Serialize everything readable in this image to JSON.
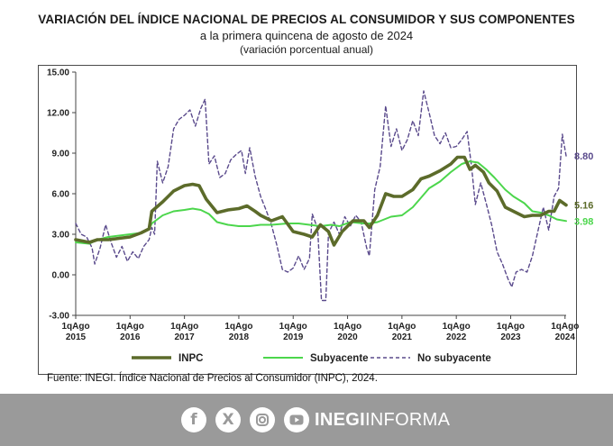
{
  "title": "VARIACIÓN DEL ÍNDICE NACIONAL DE PRECIOS AL CONSUMIDOR Y SUS COMPONENTES",
  "subtitle": "a la primera quincena de agosto de 2024",
  "subtitle2": "(variación porcentual anual)",
  "source": "Fuente: INEGI. Índice Nacional de Precios al Consumidor (INPC), 2024.",
  "footer": {
    "brand_bold": "INEGI",
    "brand_rest": "INFORMA",
    "icons": [
      "facebook-icon",
      "x-icon",
      "instagram-icon",
      "youtube-icon"
    ],
    "background": "#9a9a9a"
  },
  "colors": {
    "inpc": "#5c6b2a",
    "subyacente": "#4cd64c",
    "no_subyacente": "#5a4a8c"
  },
  "chart_data": {
    "type": "line",
    "title": "VARIACIÓN DEL ÍNDICE NACIONAL DE PRECIOS AL CONSUMIDOR Y SUS COMPONENTES",
    "ylim": [
      -3.0,
      15.0
    ],
    "yticks": [
      "-3.00",
      "0.00",
      "3.00",
      "6.00",
      "9.00",
      "12.00",
      "15.00"
    ],
    "xticks": [
      {
        "top": "1qAgo",
        "bottom": "2015"
      },
      {
        "top": "1qAgo",
        "bottom": "2016"
      },
      {
        "top": "1qAgo",
        "bottom": "2017"
      },
      {
        "top": "1qAgo",
        "bottom": "2018"
      },
      {
        "top": "1qAgo",
        "bottom": "2019"
      },
      {
        "top": "1qAgo",
        "bottom": "2020"
      },
      {
        "top": "1qAgo",
        "bottom": "2021"
      },
      {
        "top": "1qAgo",
        "bottom": "2022"
      },
      {
        "top": "1qAgo",
        "bottom": "2023"
      },
      {
        "top": "1qAgo",
        "bottom": "2024"
      }
    ],
    "x_range": [
      2015.6,
      2024.62
    ],
    "legend_position": "bottom",
    "series": [
      {
        "name": "INPC",
        "style": "solid-thick",
        "end_label": "5.16",
        "points": [
          [
            2015.6,
            2.6
          ],
          [
            2015.85,
            2.4
          ],
          [
            2016.0,
            2.6
          ],
          [
            2016.2,
            2.6
          ],
          [
            2016.4,
            2.7
          ],
          [
            2016.6,
            2.8
          ],
          [
            2016.8,
            3.1
          ],
          [
            2016.95,
            3.4
          ],
          [
            2017.0,
            4.7
          ],
          [
            2017.2,
            5.4
          ],
          [
            2017.4,
            6.2
          ],
          [
            2017.6,
            6.6
          ],
          [
            2017.75,
            6.7
          ],
          [
            2017.87,
            6.6
          ],
          [
            2018.0,
            5.6
          ],
          [
            2018.2,
            4.6
          ],
          [
            2018.4,
            4.8
          ],
          [
            2018.6,
            4.9
          ],
          [
            2018.75,
            5.1
          ],
          [
            2018.9,
            4.7
          ],
          [
            2019.0,
            4.4
          ],
          [
            2019.2,
            4.0
          ],
          [
            2019.4,
            4.3
          ],
          [
            2019.6,
            3.2
          ],
          [
            2019.8,
            3.0
          ],
          [
            2019.95,
            2.8
          ],
          [
            2020.1,
            3.7
          ],
          [
            2020.25,
            3.2
          ],
          [
            2020.35,
            2.2
          ],
          [
            2020.5,
            3.2
          ],
          [
            2020.7,
            4.0
          ],
          [
            2020.9,
            4.0
          ],
          [
            2021.0,
            3.5
          ],
          [
            2021.15,
            4.4
          ],
          [
            2021.3,
            6.0
          ],
          [
            2021.45,
            5.8
          ],
          [
            2021.6,
            5.8
          ],
          [
            2021.8,
            6.3
          ],
          [
            2021.95,
            7.1
          ],
          [
            2022.1,
            7.3
          ],
          [
            2022.3,
            7.7
          ],
          [
            2022.5,
            8.2
          ],
          [
            2022.62,
            8.7
          ],
          [
            2022.75,
            8.7
          ],
          [
            2022.85,
            7.8
          ],
          [
            2022.95,
            8.1
          ],
          [
            2023.1,
            7.6
          ],
          [
            2023.2,
            6.8
          ],
          [
            2023.35,
            6.2
          ],
          [
            2023.5,
            5.0
          ],
          [
            2023.65,
            4.7
          ],
          [
            2023.85,
            4.3
          ],
          [
            2024.0,
            4.4
          ],
          [
            2024.15,
            4.4
          ],
          [
            2024.3,
            4.7
          ],
          [
            2024.4,
            4.7
          ],
          [
            2024.5,
            5.5
          ],
          [
            2024.62,
            5.16
          ]
        ]
      },
      {
        "name": "Subyacente",
        "style": "solid",
        "end_label": "3.98",
        "points": [
          [
            2015.6,
            2.4
          ],
          [
            2015.85,
            2.3
          ],
          [
            2016.0,
            2.6
          ],
          [
            2016.2,
            2.8
          ],
          [
            2016.4,
            2.9
          ],
          [
            2016.6,
            3.0
          ],
          [
            2016.8,
            3.1
          ],
          [
            2016.95,
            3.4
          ],
          [
            2017.0,
            3.8
          ],
          [
            2017.2,
            4.4
          ],
          [
            2017.4,
            4.7
          ],
          [
            2017.6,
            4.8
          ],
          [
            2017.75,
            4.9
          ],
          [
            2017.9,
            4.8
          ],
          [
            2018.05,
            4.5
          ],
          [
            2018.2,
            3.9
          ],
          [
            2018.4,
            3.7
          ],
          [
            2018.6,
            3.6
          ],
          [
            2018.8,
            3.6
          ],
          [
            2019.0,
            3.7
          ],
          [
            2019.2,
            3.7
          ],
          [
            2019.5,
            3.8
          ],
          [
            2019.7,
            3.8
          ],
          [
            2019.9,
            3.7
          ],
          [
            2020.1,
            3.6
          ],
          [
            2020.3,
            3.7
          ],
          [
            2020.45,
            3.6
          ],
          [
            2020.65,
            3.9
          ],
          [
            2020.9,
            3.8
          ],
          [
            2021.0,
            3.8
          ],
          [
            2021.15,
            3.9
          ],
          [
            2021.4,
            4.3
          ],
          [
            2021.6,
            4.4
          ],
          [
            2021.8,
            5.0
          ],
          [
            2021.95,
            5.7
          ],
          [
            2022.1,
            6.4
          ],
          [
            2022.3,
            6.9
          ],
          [
            2022.5,
            7.6
          ],
          [
            2022.7,
            8.2
          ],
          [
            2022.85,
            8.4
          ],
          [
            2023.0,
            8.3
          ],
          [
            2023.15,
            7.8
          ],
          [
            2023.3,
            7.2
          ],
          [
            2023.5,
            6.3
          ],
          [
            2023.65,
            5.8
          ],
          [
            2023.85,
            5.3
          ],
          [
            2024.0,
            4.7
          ],
          [
            2024.15,
            4.6
          ],
          [
            2024.3,
            4.4
          ],
          [
            2024.45,
            4.1
          ],
          [
            2024.62,
            3.98
          ]
        ]
      },
      {
        "name": "No subyacente",
        "style": "dashed",
        "end_label": "8.80",
        "points": [
          [
            2015.6,
            3.8
          ],
          [
            2015.7,
            3.0
          ],
          [
            2015.8,
            2.8
          ],
          [
            2015.9,
            2.0
          ],
          [
            2015.95,
            0.8
          ],
          [
            2016.05,
            2.0
          ],
          [
            2016.15,
            3.7
          ],
          [
            2016.25,
            2.4
          ],
          [
            2016.35,
            1.3
          ],
          [
            2016.45,
            2.1
          ],
          [
            2016.55,
            1.0
          ],
          [
            2016.65,
            1.7
          ],
          [
            2016.75,
            1.2
          ],
          [
            2016.85,
            2.1
          ],
          [
            2016.95,
            2.6
          ],
          [
            2017.0,
            3.5
          ],
          [
            2017.05,
            3.0
          ],
          [
            2017.1,
            8.4
          ],
          [
            2017.2,
            6.8
          ],
          [
            2017.3,
            8.0
          ],
          [
            2017.4,
            10.8
          ],
          [
            2017.5,
            11.5
          ],
          [
            2017.6,
            11.8
          ],
          [
            2017.7,
            12.2
          ],
          [
            2017.8,
            11.0
          ],
          [
            2017.9,
            12.3
          ],
          [
            2017.98,
            13.0
          ],
          [
            2018.05,
            8.2
          ],
          [
            2018.15,
            8.8
          ],
          [
            2018.25,
            7.2
          ],
          [
            2018.35,
            7.5
          ],
          [
            2018.45,
            8.5
          ],
          [
            2018.55,
            8.9
          ],
          [
            2018.65,
            9.2
          ],
          [
            2018.72,
            7.5
          ],
          [
            2018.8,
            9.4
          ],
          [
            2018.9,
            7.3
          ],
          [
            2019.0,
            5.8
          ],
          [
            2019.1,
            4.8
          ],
          [
            2019.2,
            3.7
          ],
          [
            2019.3,
            2.2
          ],
          [
            2019.4,
            0.4
          ],
          [
            2019.5,
            0.2
          ],
          [
            2019.6,
            0.5
          ],
          [
            2019.7,
            1.4
          ],
          [
            2019.8,
            0.4
          ],
          [
            2019.9,
            1.2
          ],
          [
            2019.95,
            4.5
          ],
          [
            2020.05,
            3.4
          ],
          [
            2020.12,
            -1.9
          ],
          [
            2020.2,
            -1.9
          ],
          [
            2020.25,
            3.1
          ],
          [
            2020.35,
            3.9
          ],
          [
            2020.45,
            3.0
          ],
          [
            2020.55,
            4.3
          ],
          [
            2020.65,
            3.6
          ],
          [
            2020.75,
            4.4
          ],
          [
            2020.85,
            3.9
          ],
          [
            2020.95,
            2.0
          ],
          [
            2021.0,
            1.4
          ],
          [
            2021.1,
            6.3
          ],
          [
            2021.2,
            8.0
          ],
          [
            2021.3,
            12.5
          ],
          [
            2021.4,
            9.5
          ],
          [
            2021.5,
            10.8
          ],
          [
            2021.6,
            9.2
          ],
          [
            2021.7,
            10.0
          ],
          [
            2021.8,
            11.4
          ],
          [
            2021.9,
            10.3
          ],
          [
            2022.0,
            13.6
          ],
          [
            2022.1,
            12.0
          ],
          [
            2022.2,
            10.3
          ],
          [
            2022.3,
            9.7
          ],
          [
            2022.4,
            10.5
          ],
          [
            2022.5,
            9.4
          ],
          [
            2022.6,
            9.5
          ],
          [
            2022.7,
            10.0
          ],
          [
            2022.8,
            10.6
          ],
          [
            2022.88,
            8.0
          ],
          [
            2022.95,
            5.2
          ],
          [
            2023.05,
            6.8
          ],
          [
            2023.15,
            5.3
          ],
          [
            2023.25,
            3.7
          ],
          [
            2023.35,
            1.7
          ],
          [
            2023.45,
            0.8
          ],
          [
            2023.55,
            -0.3
          ],
          [
            2023.62,
            -0.9
          ],
          [
            2023.7,
            0.2
          ],
          [
            2023.8,
            0.4
          ],
          [
            2023.9,
            0.2
          ],
          [
            2024.0,
            1.4
          ],
          [
            2024.1,
            3.2
          ],
          [
            2024.2,
            5.0
          ],
          [
            2024.3,
            3.3
          ],
          [
            2024.4,
            5.8
          ],
          [
            2024.48,
            6.4
          ],
          [
            2024.55,
            10.4
          ],
          [
            2024.62,
            8.8
          ]
        ]
      }
    ]
  }
}
